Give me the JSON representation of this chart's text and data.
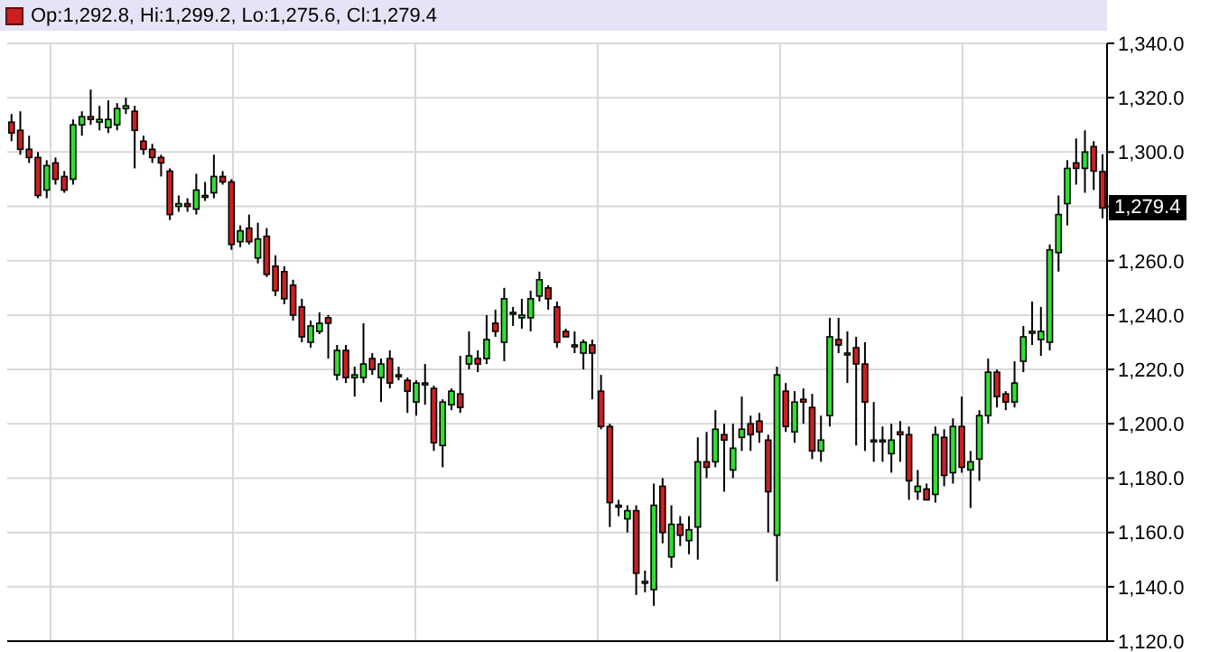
{
  "chart_data": {
    "type": "candlestick",
    "annotations": [
      "Op:1,292.8, Hi:1,299.2, Lo:1,275.6, Cl:1,279.4",
      {
        "text": "1,279.4",
        "y": 1279.4
      }
    ],
    "categories": [
      null,
      null,
      null,
      null,
      null,
      null,
      null,
      null,
      null,
      null,
      null,
      null,
      null,
      null,
      null,
      null,
      null,
      null,
      null,
      null,
      null,
      null,
      null,
      null,
      null,
      null,
      null,
      null,
      null,
      null,
      null,
      null,
      null,
      null,
      null,
      null,
      null,
      null,
      null,
      null,
      null,
      null,
      null,
      null,
      null,
      null,
      null,
      null,
      null,
      null,
      null,
      null,
      null,
      null,
      null,
      null,
      null,
      null,
      null,
      null,
      null,
      null,
      null,
      null,
      null,
      null,
      null,
      null,
      null,
      null,
      null,
      null,
      null,
      null,
      null,
      null,
      null,
      null,
      null,
      null,
      null,
      null,
      null,
      null,
      null,
      null,
      null,
      null,
      null,
      null,
      null,
      null,
      null,
      null,
      null,
      null,
      null,
      null,
      null,
      null,
      null,
      null,
      null,
      null,
      null,
      null,
      null,
      null,
      null,
      null,
      null,
      null,
      null,
      null,
      null,
      null,
      null,
      null,
      null,
      null,
      null,
      null,
      null,
      null,
      null
    ],
    "ohlc": [
      [
        1311,
        1314,
        1304,
        1307
      ],
      [
        1308,
        1315,
        1299,
        1301
      ],
      [
        1301,
        1306,
        1296,
        1298
      ],
      [
        1298,
        1300,
        1283,
        1284
      ],
      [
        1286,
        1297,
        1283,
        1295
      ],
      [
        1296,
        1298,
        1288,
        1290
      ],
      [
        1291,
        1293,
        1285,
        1286
      ],
      [
        1290,
        1312,
        1288,
        1310
      ],
      [
        1310,
        1315,
        1306,
        1313
      ],
      [
        1313,
        1323,
        1310,
        1312
      ],
      [
        1311,
        1317,
        1308,
        1312
      ],
      [
        1309,
        1319,
        1307,
        1312
      ],
      [
        1310,
        1318,
        1308,
        1316
      ],
      [
        1316,
        1320,
        1314,
        1317
      ],
      [
        1315,
        1317,
        1294,
        1308
      ],
      [
        1304,
        1306,
        1299,
        1301
      ],
      [
        1301,
        1303,
        1296,
        1298
      ],
      [
        1298,
        1299,
        1291,
        1296
      ],
      [
        1293,
        1294,
        1275,
        1277
      ],
      [
        1280,
        1284,
        1278,
        1281
      ],
      [
        1281,
        1283,
        1278,
        1280
      ],
      [
        1279,
        1292,
        1277,
        1286
      ],
      [
        1284,
        1289,
        1282,
        1284
      ],
      [
        1285,
        1299,
        1283,
        1291
      ],
      [
        1291,
        1293,
        1288,
        1289
      ],
      [
        1289,
        1290,
        1264,
        1266
      ],
      [
        1267,
        1273,
        1265,
        1271
      ],
      [
        1272,
        1277,
        1266,
        1267
      ],
      [
        1261,
        1274,
        1259,
        1268
      ],
      [
        1269,
        1272,
        1254,
        1255
      ],
      [
        1258,
        1262,
        1247,
        1249
      ],
      [
        1256,
        1258,
        1244,
        1246
      ],
      [
        1251,
        1253,
        1238,
        1240
      ],
      [
        1243,
        1246,
        1230,
        1232
      ],
      [
        1230,
        1238,
        1228,
        1236
      ],
      [
        1234,
        1241,
        1233,
        1237
      ],
      [
        1239,
        1240,
        1224,
        1237
      ],
      [
        1218,
        1229,
        1216,
        1227
      ],
      [
        1227,
        1229,
        1215,
        1217
      ],
      [
        1217,
        1221,
        1210,
        1218
      ],
      [
        1217,
        1237,
        1215,
        1222
      ],
      [
        1224,
        1226,
        1218,
        1220
      ],
      [
        1217,
        1224,
        1208,
        1222
      ],
      [
        1224,
        1227,
        1213,
        1215
      ],
      [
        1218,
        1221,
        1216,
        1218
      ],
      [
        1216,
        1217,
        1204,
        1212
      ],
      [
        1208,
        1216,
        1203,
        1215
      ],
      [
        1215,
        1222,
        1207,
        1215
      ],
      [
        1213,
        1214,
        1190,
        1193
      ],
      [
        1192,
        1209,
        1184,
        1208
      ],
      [
        1207,
        1213,
        1205,
        1212
      ],
      [
        1211,
        1225,
        1204,
        1206
      ],
      [
        1222,
        1234,
        1220,
        1225
      ],
      [
        1224,
        1227,
        1219,
        1222
      ],
      [
        1224,
        1240,
        1222,
        1231
      ],
      [
        1237,
        1242,
        1232,
        1234
      ],
      [
        1230,
        1250,
        1223,
        1246
      ],
      [
        1241,
        1243,
        1236,
        1241
      ],
      [
        1239,
        1246,
        1235,
        1240
      ],
      [
        1239,
        1249,
        1234,
        1246
      ],
      [
        1247,
        1256,
        1245,
        1253
      ],
      [
        1250,
        1251,
        1242,
        1246
      ],
      [
        1243,
        1245,
        1228,
        1230
      ],
      [
        1234,
        1235,
        1232,
        1232
      ],
      [
        1229,
        1234,
        1226,
        1229
      ],
      [
        1226,
        1231,
        1220,
        1230
      ],
      [
        1229,
        1231,
        1209,
        1226
      ],
      [
        1212,
        1218,
        1198,
        1199
      ],
      [
        1199,
        1200,
        1162,
        1171
      ],
      [
        1170,
        1172,
        1166,
        1170
      ],
      [
        1165,
        1170,
        1160,
        1168
      ],
      [
        1168,
        1170,
        1137,
        1145
      ],
      [
        1142,
        1146,
        1138,
        1142
      ],
      [
        1139,
        1178,
        1133,
        1170
      ],
      [
        1177,
        1180,
        1156,
        1160
      ],
      [
        1151,
        1170,
        1147,
        1163
      ],
      [
        1163,
        1166,
        1155,
        1159
      ],
      [
        1157,
        1166,
        1152,
        1161
      ],
      [
        1162,
        1195,
        1150,
        1186
      ],
      [
        1186,
        1197,
        1180,
        1184
      ],
      [
        1186,
        1205,
        1184,
        1198
      ],
      [
        1196,
        1200,
        1175,
        1194
      ],
      [
        1183,
        1200,
        1180,
        1191
      ],
      [
        1195,
        1210,
        1190,
        1198
      ],
      [
        1200,
        1203,
        1190,
        1196
      ],
      [
        1201,
        1204,
        1193,
        1197
      ],
      [
        1194,
        1196,
        1160,
        1175
      ],
      [
        1159,
        1221,
        1142,
        1218
      ],
      [
        1212,
        1215,
        1197,
        1199
      ],
      [
        1197,
        1212,
        1193,
        1208
      ],
      [
        1209,
        1213,
        1200,
        1208
      ],
      [
        1206,
        1211,
        1187,
        1190
      ],
      [
        1190,
        1203,
        1186,
        1194
      ],
      [
        1203,
        1239,
        1199,
        1232
      ],
      [
        1231,
        1239,
        1226,
        1229
      ],
      [
        1226,
        1234,
        1215,
        1226
      ],
      [
        1228,
        1232,
        1192,
        1222
      ],
      [
        1222,
        1230,
        1190,
        1208
      ],
      [
        1194,
        1208,
        1186,
        1194
      ],
      [
        1194,
        1199,
        1186,
        1194
      ],
      [
        1189,
        1200,
        1182,
        1194
      ],
      [
        1197,
        1201,
        1186,
        1196
      ],
      [
        1196,
        1199,
        1172,
        1179
      ],
      [
        1175,
        1183,
        1172,
        1177
      ],
      [
        1176,
        1178,
        1172,
        1172
      ],
      [
        1174,
        1199,
        1171,
        1196
      ],
      [
        1195,
        1198,
        1177,
        1181
      ],
      [
        1182,
        1202,
        1178,
        1199
      ],
      [
        1199,
        1210,
        1182,
        1184
      ],
      [
        1183,
        1190,
        1169,
        1186
      ],
      [
        1187,
        1205,
        1179,
        1203
      ],
      [
        1203,
        1224,
        1200,
        1219
      ],
      [
        1219,
        1220,
        1206,
        1210
      ],
      [
        1211,
        1212,
        1205,
        1208
      ],
      [
        1208,
        1223,
        1206,
        1215
      ],
      [
        1223,
        1236,
        1219,
        1232
      ],
      [
        1234,
        1245,
        1229,
        1234
      ],
      [
        1231,
        1243,
        1225,
        1234
      ],
      [
        1230,
        1266,
        1227,
        1264
      ],
      [
        1263,
        1284,
        1256,
        1277
      ],
      [
        1281,
        1297,
        1273,
        1294
      ],
      [
        1296,
        1305,
        1288,
        1294
      ],
      [
        1294,
        1308,
        1285,
        1300
      ],
      [
        1302,
        1304,
        1286,
        1293
      ],
      [
        1292.8,
        1299.2,
        1275.6,
        1279.4
      ]
    ],
    "ylim": [
      1120,
      1340
    ],
    "yticks": [
      {
        "value": 1120,
        "label": "1,120.0"
      },
      {
        "value": 1140,
        "label": "1,140.0"
      },
      {
        "value": 1160,
        "label": "1,160.0"
      },
      {
        "value": 1180,
        "label": "1,180.0"
      },
      {
        "value": 1200,
        "label": "1,200.0"
      },
      {
        "value": 1220,
        "label": "1,220.0"
      },
      {
        "value": 1240,
        "label": "1,240.0"
      },
      {
        "value": 1260,
        "label": "1,260.0"
      },
      {
        "value": 1280,
        "label": null
      },
      {
        "value": 1300,
        "label": "1,300.0"
      },
      {
        "value": 1320,
        "label": "1,320.0"
      },
      {
        "value": 1340,
        "label": "1,340.0"
      }
    ],
    "tick_labels": "y",
    "grid": true
  }
}
